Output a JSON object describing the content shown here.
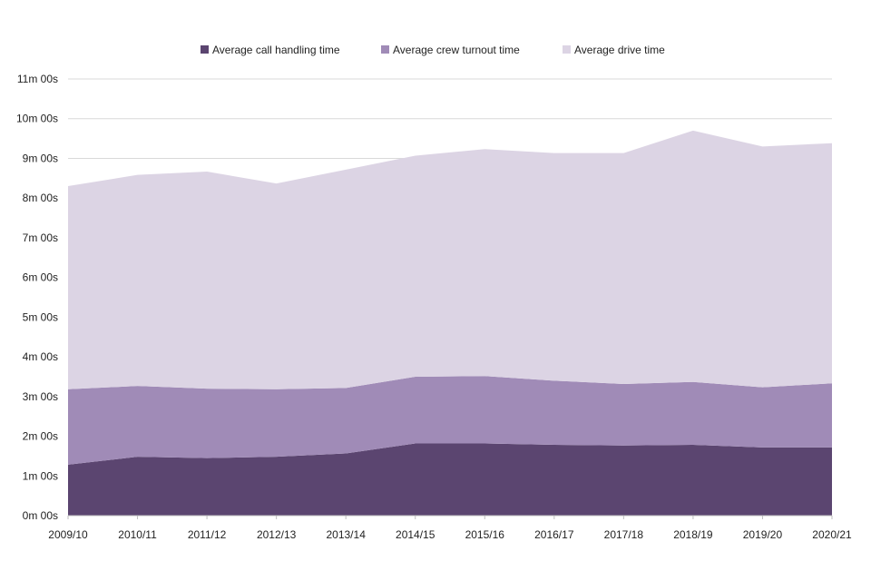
{
  "chart_data": {
    "type": "area",
    "stacked": true,
    "title": "",
    "xlabel": "",
    "ylabel": "",
    "categories": [
      "2009/10",
      "2010/11",
      "2011/12",
      "2012/13",
      "2013/14",
      "2014/15",
      "2015/16",
      "2016/17",
      "2017/18",
      "2018/19",
      "2019/20",
      "2020/21"
    ],
    "y_unit": "seconds",
    "ylim": [
      0,
      660
    ],
    "y_ticks": [
      0,
      60,
      120,
      180,
      240,
      300,
      360,
      420,
      480,
      540,
      600,
      660
    ],
    "y_tick_labels": [
      "0m 00s",
      "1m 00s",
      "2m 00s",
      "3m 00s",
      "4m 00s",
      "5m 00s",
      "6m 00s",
      "7m 00s",
      "8m 00s",
      "9m 00s",
      "10m 00s",
      "11m 00s"
    ],
    "grid": true,
    "legend_position": "top-center",
    "series": [
      {
        "name": "Average call handling time",
        "color": "#5b4570",
        "values": [
          77,
          89,
          87,
          89,
          94,
          109,
          109,
          107,
          106,
          107,
          103,
          103
        ]
      },
      {
        "name": "Average crew turnout time",
        "color": "#a08bb7",
        "values": [
          114,
          107,
          105,
          102,
          99,
          101,
          102,
          97,
          93,
          95,
          91,
          97
        ]
      },
      {
        "name": "Average drive time",
        "color": "#dcd4e4",
        "values": [
          307,
          319,
          328,
          311,
          330,
          334,
          343,
          344,
          349,
          380,
          364,
          363
        ]
      }
    ]
  }
}
